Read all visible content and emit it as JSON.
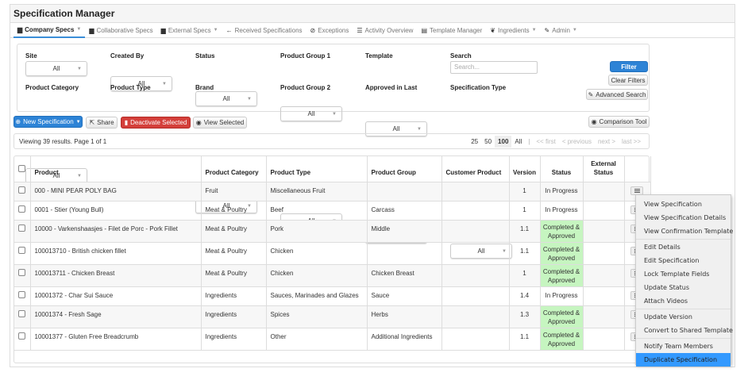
{
  "title": "Specification Manager",
  "nav": [
    {
      "label": "Company Specs",
      "icon": "briefcase-icon",
      "glyph": "▆",
      "caret": true,
      "active": true
    },
    {
      "label": "Collaborative Specs",
      "icon": "briefcase-icon",
      "glyph": "▆",
      "caret": false
    },
    {
      "label": "External Specs",
      "icon": "briefcase-icon",
      "glyph": "▆",
      "caret": true
    },
    {
      "label": "Received Specifications",
      "icon": "arrow-left-icon",
      "glyph": "←",
      "caret": false
    },
    {
      "label": "Exceptions",
      "icon": "check-circle-icon",
      "glyph": "⊘",
      "caret": false
    },
    {
      "label": "Activity Overview",
      "icon": "list-icon",
      "glyph": "☰",
      "caret": false
    },
    {
      "label": "Template Manager",
      "icon": "document-icon",
      "glyph": "▤",
      "caret": false
    },
    {
      "label": "Ingredients",
      "icon": "leaf-icon",
      "glyph": "❦",
      "caret": true
    },
    {
      "label": "Admin",
      "icon": "wrench-icon",
      "glyph": "✎",
      "caret": true
    }
  ],
  "filters": {
    "row1": [
      {
        "label": "Site",
        "value": "All"
      },
      {
        "label": "Created By",
        "value": "All"
      },
      {
        "label": "Status",
        "value": "All"
      },
      {
        "label": "Product Group 1",
        "value": "All"
      },
      {
        "label": "Template",
        "value": "All"
      }
    ],
    "row2": [
      {
        "label": "Product Category",
        "value": "All"
      },
      {
        "label": "Product Type",
        "value": "All"
      },
      {
        "label": "Brand",
        "value": "All"
      },
      {
        "label": "Product Group 2",
        "value": "All"
      },
      {
        "label": "Approved in Last",
        "value": "All"
      },
      {
        "label": "Specification Type",
        "value": "All"
      }
    ],
    "search_label": "Search",
    "search_placeholder": "Search...",
    "filter_btn": "Filter",
    "clear_btn": "Clear Filters",
    "advanced_btn": "Advanced Search"
  },
  "toolbar": {
    "new": "New Specification",
    "share": "Share",
    "deactivate": "Deactivate Selected",
    "view": "View Selected",
    "compare": "Comparison Tool"
  },
  "pager": {
    "summary": "Viewing 39 results. Page 1 of 1",
    "sizes": [
      "25",
      "50",
      "100",
      "All"
    ],
    "current": "100",
    "sep": "|",
    "first": "<< first",
    "prev": "< previous",
    "next": "next >",
    "last": "last >>"
  },
  "table": {
    "headers": [
      "Product",
      "Product Category",
      "Product Type",
      "Product Group",
      "Customer Product",
      "Version",
      "Status",
      "External Status"
    ],
    "rows": [
      [
        "000 - MINI PEAR POLY BAG",
        "Fruit",
        "Miscellaneous Fruit",
        "",
        "",
        "1",
        "In Progress",
        ""
      ],
      [
        "0001 - Stier (Young Bull)",
        "Meat & Poultry",
        "Beef",
        "Carcass",
        "",
        "1",
        "In Progress",
        ""
      ],
      [
        "10000 - Varkenshaasjes - Filet de Porc - Pork Fillet",
        "Meat & Poultry",
        "Pork",
        "Middle",
        "",
        "1.1",
        "Completed & Approved",
        ""
      ],
      [
        "100013710 - British chicken fillet",
        "Meat & Poultry",
        "Chicken",
        "",
        "",
        "1.1",
        "Completed & Approved",
        ""
      ],
      [
        "100013711 - Chicken Breast",
        "Meat & Poultry",
        "Chicken",
        "Chicken Breast",
        "",
        "1",
        "Completed & Approved",
        ""
      ],
      [
        "10001372 - Char Sui Sauce",
        "Ingredients",
        "Sauces, Marinades and Glazes",
        "Sauce",
        "",
        "1.4",
        "In Progress",
        ""
      ],
      [
        "10001374 - Fresh Sage",
        "Ingredients",
        "Spices",
        "Herbs",
        "",
        "1.3",
        "Completed & Approved",
        ""
      ],
      [
        "10001377 - Gluten Free Breadcrumb",
        "Ingredients",
        "Other",
        "Additional Ingredients",
        "",
        "1.1",
        "Completed & Approved",
        ""
      ]
    ]
  },
  "menu": {
    "groups": [
      [
        "View Specification",
        "View Specification Details",
        "View Confirmation Template"
      ],
      [
        "Edit Details",
        "Edit Specification",
        "Lock Template Fields",
        "Update Status",
        "Attach Videos"
      ],
      [
        "Update Version",
        "Convert to Shared Template"
      ],
      [
        "Notify Team Members",
        "Duplicate Specification"
      ]
    ],
    "selected": "Duplicate Specification"
  },
  "colors": {
    "accent": "#2d83d6",
    "danger": "#d43f3a",
    "approved": "#c6f5c0",
    "menu_highlight": "#3399ff"
  }
}
